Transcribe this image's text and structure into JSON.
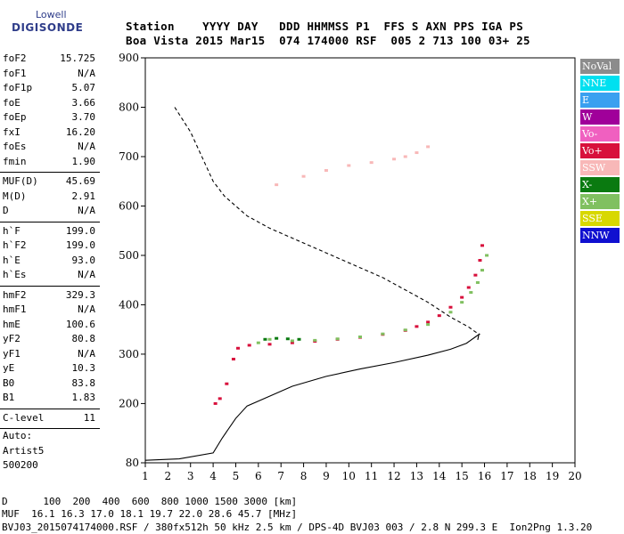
{
  "logo": {
    "line1": "Lowell",
    "line2": "DIGISONDE"
  },
  "header": {
    "labels": "Station    YYYY DAY   DDD HHMMSS P1  FFS S AXN PPS IGA PS",
    "values": "Boa Vista 2015 Mar15  074 174000 RSF  005 2 713 100 03+ 25"
  },
  "parameters": [
    {
      "name": "foF2",
      "value": "15.725"
    },
    {
      "name": "foF1",
      "value": "N/A"
    },
    {
      "name": "foF1p",
      "value": "5.07"
    },
    {
      "name": "foE",
      "value": "3.66"
    },
    {
      "name": "foEp",
      "value": "3.70"
    },
    {
      "name": "fxI",
      "value": "16.20"
    },
    {
      "name": "foEs",
      "value": "N/A"
    },
    {
      "name": "fmin",
      "value": "1.90"
    },
    {
      "name": "MUF(D)",
      "value": "45.69"
    },
    {
      "name": "M(D)",
      "value": "2.91"
    },
    {
      "name": "D",
      "value": "N/A"
    },
    {
      "name": "h`F",
      "value": "199.0"
    },
    {
      "name": "h`F2",
      "value": "199.0"
    },
    {
      "name": "h`E",
      "value": "93.0"
    },
    {
      "name": "h`Es",
      "value": "N/A"
    },
    {
      "name": "hmF2",
      "value": "329.3"
    },
    {
      "name": "hmF1",
      "value": "N/A"
    },
    {
      "name": "hmE",
      "value": "100.6"
    },
    {
      "name": "yF2",
      "value": "80.8"
    },
    {
      "name": "yF1",
      "value": "N/A"
    },
    {
      "name": "yE",
      "value": "10.3"
    },
    {
      "name": "B0",
      "value": "83.8"
    },
    {
      "name": "B1",
      "value": "1.83"
    },
    {
      "name": "C-level",
      "value": "11"
    }
  ],
  "auto": {
    "line1": "Auto:",
    "line2": "Artist5",
    "line3": "500200"
  },
  "legend": [
    {
      "label": "NoVal",
      "bg": "#8c8c8c",
      "fg": "#ffffff"
    },
    {
      "label": "NNE",
      "bg": "#00e0f0",
      "fg": "#ffffff"
    },
    {
      "label": "E",
      "bg": "#3aa0f0",
      "fg": "#ffffff"
    },
    {
      "label": "W",
      "bg": "#a0009a",
      "fg": "#ffffff"
    },
    {
      "label": "Vo-",
      "bg": "#f060c0",
      "fg": "#ffffff"
    },
    {
      "label": "Vo+",
      "bg": "#d8103c",
      "fg": "#ffffff"
    },
    {
      "label": "SSW",
      "bg": "#f8b8b8",
      "fg": "#ffffff"
    },
    {
      "label": "X-",
      "bg": "#0a7a10",
      "fg": "#ffffff"
    },
    {
      "label": "X+",
      "bg": "#80c060",
      "fg": "#ffffff"
    },
    {
      "label": "SSE",
      "bg": "#d8d800",
      "fg": "#ffffff"
    },
    {
      "label": "NNW",
      "bg": "#1010d0",
      "fg": "#ffffff"
    }
  ],
  "footer": {
    "line1": "D      100  200  400  600  800 1000 1500 3000 [km]",
    "line2": "MUF  16.1 16.3 17.0 18.1 19.7 22.0 28.6 45.7 [MHz]",
    "line3": "BVJ03_2015074174000.RSF / 380fx512h 50 kHz 2.5 km / DPS-4D BVJ03 003 / 2.8 N 299.3 E  Ion2Png 1.3.20"
  },
  "chart_data": {
    "type": "scatter",
    "xlim": [
      1,
      20
    ],
    "ylim": [
      80,
      900
    ],
    "x_ticks": [
      1,
      2,
      3,
      4,
      5,
      6,
      7,
      8,
      9,
      10,
      11,
      12,
      13,
      14,
      15,
      16,
      17,
      18,
      19,
      20
    ],
    "y_ticks": [
      80,
      200,
      300,
      400,
      500,
      600,
      700,
      800,
      900
    ],
    "grid": false,
    "legend_position": "right",
    "series": [
      {
        "name": "Vo+",
        "color": "#d8103c",
        "x": [
          4.1,
          4.3,
          4.6,
          4.9,
          5.1,
          5.6,
          6.5,
          7.5,
          8.5,
          9.5,
          10.5,
          11.5,
          12.5,
          13.0,
          13.5,
          14.0,
          14.5,
          15.0,
          15.3,
          15.6,
          15.8,
          15.9
        ],
        "y": [
          200,
          210,
          240,
          290,
          312,
          318,
          320,
          323,
          326,
          330,
          334,
          340,
          348,
          356,
          365,
          378,
          395,
          415,
          435,
          460,
          490,
          520
        ]
      },
      {
        "name": "X+",
        "color": "#80c060",
        "x": [
          6.0,
          6.5,
          7.5,
          8.5,
          9.5,
          10.5,
          11.5,
          12.5,
          13.5,
          14.5,
          15.0,
          15.4,
          15.7,
          15.9,
          16.1
        ],
        "y": [
          323,
          330,
          327,
          328,
          331,
          335,
          341,
          349,
          360,
          385,
          405,
          425,
          445,
          470,
          500
        ]
      },
      {
        "name": "X-",
        "color": "#0a7a10",
        "x": [
          6.3,
          6.8,
          7.3,
          7.8
        ],
        "y": [
          330,
          332,
          331,
          330
        ]
      },
      {
        "name": "SSW",
        "color": "#f8b8b8",
        "x": [
          6.8,
          8.0,
          9.0,
          10.0,
          11.0,
          12.0,
          12.5,
          13.0,
          13.5
        ],
        "y": [
          643,
          660,
          672,
          682,
          688,
          695,
          700,
          708,
          720
        ]
      },
      {
        "name": "electron density profile",
        "color": "#000000",
        "x": [
          1.0,
          2.5,
          4.0,
          4.4,
          5.0,
          5.5,
          6.5,
          7.5,
          9.0,
          10.5,
          12.0,
          13.5,
          14.5,
          15.2,
          15.6,
          15.75,
          15.7
        ],
        "y": [
          85,
          88,
          100,
          130,
          170,
          195,
          215,
          235,
          255,
          270,
          283,
          298,
          310,
          322,
          335,
          340,
          329
        ]
      },
      {
        "name": "MUF(D) curve",
        "color": "#000000",
        "x": [
          2.3,
          3.0,
          3.6,
          4.0,
          4.5,
          5.5,
          6.5,
          7.5,
          8.5,
          9.5,
          10.5,
          11.5,
          12.5,
          13.5,
          14.5,
          15.3,
          15.6,
          15.8
        ],
        "y": [
          800,
          750,
          690,
          650,
          620,
          580,
          555,
          535,
          515,
          495,
          475,
          455,
          430,
          405,
          375,
          355,
          345,
          340
        ]
      }
    ]
  }
}
